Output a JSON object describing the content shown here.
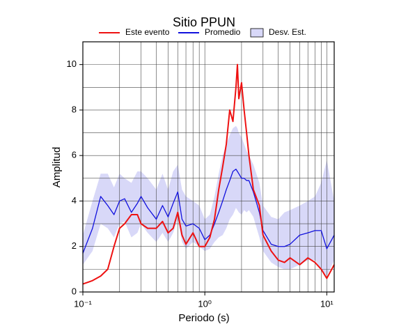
{
  "chart_data": {
    "type": "line",
    "title": "Sitio PPUN",
    "x_label": "Periodo (s)",
    "y_label": "Amplitud",
    "xscale": "log",
    "xlim": [
      0.1,
      11.5
    ],
    "ylim": [
      0,
      11
    ],
    "xticks": [
      {
        "value": 0.1,
        "label": "10⁻¹"
      },
      {
        "value": 1,
        "label": "10⁰"
      },
      {
        "value": 10,
        "label": "10¹"
      }
    ],
    "x_minor_ticks": [
      0.2,
      0.3,
      0.4,
      0.5,
      0.6,
      0.7,
      0.8,
      0.9,
      2,
      3,
      4,
      5,
      6,
      7,
      8,
      9
    ],
    "yticks": [
      0,
      2,
      4,
      6,
      8,
      10
    ],
    "y_minor_ticks": [
      1,
      3,
      5,
      7,
      9
    ],
    "grid": true,
    "x": [
      0.1,
      0.12,
      0.14,
      0.16,
      0.18,
      0.2,
      0.22,
      0.25,
      0.28,
      0.3,
      0.34,
      0.4,
      0.45,
      0.5,
      0.55,
      0.6,
      0.65,
      0.7,
      0.8,
      0.9,
      1.0,
      1.1,
      1.2,
      1.3,
      1.4,
      1.5,
      1.6,
      1.7,
      1.8,
      1.85,
      1.9,
      2.0,
      2.1,
      2.2,
      2.3,
      2.5,
      2.8,
      3.0,
      3.5,
      4.0,
      4.5,
      5.0,
      6.0,
      7.0,
      8.0,
      9.0,
      10.0,
      11.5
    ],
    "series": [
      {
        "name": "Este evento",
        "color": "#ee1111",
        "values": [
          0.35,
          0.5,
          0.7,
          1.0,
          2.0,
          2.8,
          3.0,
          3.4,
          3.4,
          3.0,
          2.8,
          2.8,
          3.1,
          2.6,
          2.8,
          3.5,
          2.5,
          2.1,
          2.6,
          2.0,
          2.0,
          2.4,
          3.2,
          4.5,
          5.5,
          6.5,
          8.0,
          7.5,
          9.0,
          10.0,
          8.5,
          9.2,
          8.0,
          7.0,
          6.0,
          4.5,
          3.8,
          2.5,
          1.8,
          1.4,
          1.3,
          1.5,
          1.2,
          1.5,
          1.3,
          1.0,
          0.6,
          1.2
        ]
      },
      {
        "name": "Promedio",
        "color": "#1111dd",
        "values": [
          1.7,
          2.8,
          4.2,
          3.8,
          3.4,
          4.0,
          4.1,
          3.5,
          3.9,
          4.2,
          3.7,
          3.2,
          3.8,
          3.3,
          3.9,
          4.4,
          3.2,
          2.9,
          3.0,
          2.8,
          2.3,
          2.5,
          3.0,
          3.5,
          4.0,
          4.5,
          4.9,
          5.3,
          5.4,
          5.3,
          5.2,
          5.0,
          5.0,
          4.9,
          4.9,
          4.4,
          3.5,
          2.7,
          2.1,
          2.0,
          2.0,
          2.1,
          2.5,
          2.6,
          2.7,
          2.7,
          1.9,
          2.5
        ]
      },
      {
        "name": "Desv. Est.",
        "color": "#d8d8f8",
        "type": "band",
        "upper": [
          2.5,
          4.0,
          5.2,
          5.2,
          4.6,
          5.2,
          5.0,
          4.8,
          5.3,
          5.3,
          5.0,
          4.5,
          5.2,
          4.5,
          5.3,
          5.6,
          4.5,
          4.2,
          4.0,
          3.8,
          3.2,
          3.4,
          4.2,
          5.2,
          6.0,
          6.5,
          6.9,
          7.2,
          7.3,
          7.2,
          7.0,
          6.8,
          6.5,
          6.2,
          6.0,
          5.6,
          4.8,
          3.8,
          3.3,
          3.2,
          3.5,
          3.6,
          3.8,
          4.0,
          4.2,
          4.8,
          5.8,
          4.0
        ],
        "lower": [
          1.2,
          1.8,
          3.0,
          2.8,
          2.4,
          3.0,
          3.1,
          2.4,
          2.6,
          3.0,
          2.6,
          2.2,
          2.6,
          2.2,
          2.6,
          3.2,
          2.2,
          1.9,
          2.2,
          2.0,
          1.8,
          1.9,
          2.2,
          2.4,
          2.5,
          2.8,
          3.2,
          3.4,
          3.7,
          3.6,
          3.5,
          3.4,
          3.6,
          3.5,
          3.6,
          3.3,
          2.4,
          1.8,
          1.3,
          1.1,
          1.0,
          1.0,
          1.2,
          1.4,
          1.4,
          1.0,
          0.7,
          1.4
        ]
      }
    ]
  }
}
